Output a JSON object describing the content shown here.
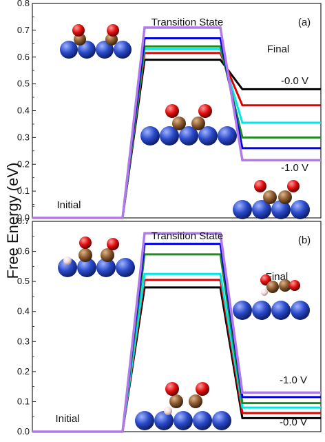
{
  "ylabel": "Free Energy (eV)",
  "chart_data": [
    {
      "type": "line",
      "panel_label": "(a)",
      "ylim": [
        0.0,
        0.8
      ],
      "yticks": [
        "0.0",
        "0.1",
        "0.2",
        "0.3",
        "0.4",
        "0.5",
        "0.6",
        "0.7",
        "0.8"
      ],
      "grid": false,
      "annotations": {
        "initial": "Initial",
        "transition": "Transition State",
        "final": "Final",
        "voltage_top": "-0.0 V",
        "voltage_bottom": "-1.0 V"
      },
      "stages": [
        "Initial",
        "Transition State",
        "Final"
      ],
      "series": [
        {
          "color": "#000000",
          "values": [
            0.0,
            0.59,
            0.48
          ]
        },
        {
          "color": "#e00000",
          "values": [
            0.0,
            0.615,
            0.42
          ]
        },
        {
          "color": "#00e5e5",
          "values": [
            0.0,
            0.63,
            0.355
          ]
        },
        {
          "color": "#1f8a1f",
          "values": [
            0.0,
            0.64,
            0.3
          ]
        },
        {
          "color": "#0000e0",
          "values": [
            0.0,
            0.67,
            0.26
          ]
        },
        {
          "color": "#b07ae8",
          "values": [
            0.0,
            0.71,
            0.215
          ]
        }
      ]
    },
    {
      "type": "line",
      "panel_label": "(b)",
      "ylim": [
        0.0,
        0.7
      ],
      "yticks": [
        "0.0",
        "0.1",
        "0.2",
        "0.3",
        "0.4",
        "0.5",
        "0.6",
        "0.7"
      ],
      "grid": false,
      "annotations": {
        "initial": "Initial",
        "transition": "Transition State",
        "final": "Final",
        "voltage_top": "-1.0 V",
        "voltage_bottom": "-0.0 V"
      },
      "stages": [
        "Initial",
        "Transition State",
        "Final"
      ],
      "series": [
        {
          "color": "#000000",
          "values": [
            0.0,
            0.48,
            0.045
          ]
        },
        {
          "color": "#e00000",
          "values": [
            0.0,
            0.505,
            0.062
          ]
        },
        {
          "color": "#00e5e5",
          "values": [
            0.0,
            0.525,
            0.08
          ]
        },
        {
          "color": "#1f8a1f",
          "values": [
            0.0,
            0.59,
            0.095
          ]
        },
        {
          "color": "#0000e0",
          "values": [
            0.0,
            0.625,
            0.115
          ]
        },
        {
          "color": "#b07ae8",
          "values": [
            0.0,
            0.66,
            0.13
          ]
        }
      ]
    }
  ],
  "colors": {
    "surface_atom": "#2a49c8",
    "carbon": "#8a5a2e",
    "oxygen": "#e01010",
    "hydrogen": "#f0d8d8"
  },
  "icons": [
    "molecule-surface-illustration"
  ]
}
